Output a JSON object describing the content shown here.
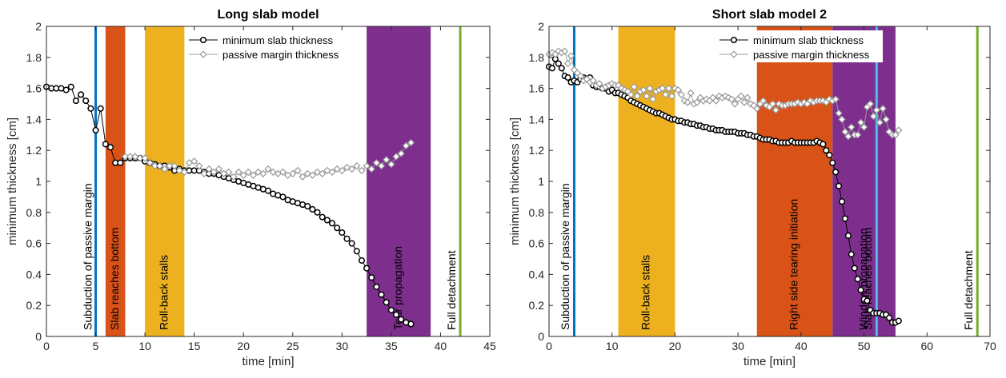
{
  "chart_data": [
    {
      "type": "scatter",
      "title": "Long slab model",
      "xlabel": "time [min]",
      "ylabel": "minimum thickness [cm]",
      "xlim": [
        0,
        45
      ],
      "ylim": [
        0,
        2
      ],
      "xticks": [
        "0",
        "5",
        "10",
        "15",
        "20",
        "25",
        "30",
        "35",
        "40",
        "45"
      ],
      "yticks": [
        "0",
        "0.2",
        "0.4",
        "0.6",
        "0.8",
        "1",
        "1.2",
        "1.4",
        "1.6",
        "1.8",
        "2"
      ],
      "grid": false,
      "legend_position": "top-center",
      "bands": [
        {
          "x0": 6,
          "x1": 8,
          "color": "#D95319",
          "label": "Slab reaches bottom"
        },
        {
          "x0": 10,
          "x1": 14,
          "color": "#EDB120",
          "label": "Roll-back stalls"
        },
        {
          "x0": 32.5,
          "x1": 39,
          "color": "#7E2F8E",
          "label": "Tear propagation"
        }
      ],
      "vlines": [
        {
          "x": 5,
          "color": "#0072BD",
          "label": "Subduction of passive margin"
        },
        {
          "x": 42,
          "color": "#77AC30",
          "label": "Full detachment"
        }
      ],
      "series": [
        {
          "name": "minimum slab thickness",
          "marker": "circle",
          "color": "#000000",
          "x": [
            0,
            0.5,
            1,
            1.5,
            2,
            2.5,
            3,
            3.5,
            4,
            4.5,
            5,
            5.5,
            6,
            6.5,
            7,
            7.5,
            8,
            8.5,
            9,
            9.5,
            10,
            10.5,
            11,
            11.5,
            12,
            12.5,
            13,
            13.5,
            14,
            14.5,
            15,
            15.5,
            16,
            16.5,
            17,
            17.5,
            18,
            18.5,
            19,
            19.5,
            20,
            20.5,
            21,
            21.5,
            22,
            22.5,
            23,
            23.5,
            24,
            24.5,
            25,
            25.5,
            26,
            26.5,
            27,
            27.5,
            28,
            28.5,
            29,
            29.5,
            30,
            30.5,
            31,
            31.5,
            32,
            32.5,
            33,
            33.5,
            34,
            34.5,
            35,
            35.5,
            36,
            36.5,
            37
          ],
          "y": [
            1.61,
            1.6,
            1.6,
            1.6,
            1.59,
            1.61,
            1.52,
            1.56,
            1.52,
            1.47,
            1.33,
            1.47,
            1.24,
            1.22,
            1.12,
            1.12,
            1.15,
            1.15,
            1.15,
            1.15,
            1.13,
            1.12,
            1.11,
            1.1,
            1.1,
            1.09,
            1.07,
            1.08,
            1.07,
            1.07,
            1.07,
            1.07,
            1.06,
            1.05,
            1.05,
            1.04,
            1.03,
            1.02,
            1.01,
            1.0,
            0.99,
            0.98,
            0.97,
            0.96,
            0.95,
            0.94,
            0.92,
            0.91,
            0.9,
            0.88,
            0.87,
            0.86,
            0.85,
            0.84,
            0.82,
            0.8,
            0.77,
            0.75,
            0.73,
            0.7,
            0.67,
            0.63,
            0.6,
            0.55,
            0.49,
            0.44,
            0.38,
            0.32,
            0.27,
            0.22,
            0.17,
            0.14,
            0.11,
            0.09,
            0.08
          ]
        },
        {
          "name": "passive margin thickness",
          "marker": "diamond",
          "color": "#999999",
          "x": [
            8,
            8.5,
            9,
            9.5,
            10,
            10.5,
            11,
            11.5,
            12,
            12.5,
            13,
            13.5,
            14,
            14.5,
            15,
            15.5,
            16,
            16.5,
            17,
            17.5,
            18,
            18.5,
            19,
            19.5,
            20,
            20.5,
            21,
            21.5,
            22,
            22.5,
            23,
            23.5,
            24,
            24.5,
            25,
            25.5,
            26,
            26.5,
            27,
            27.5,
            28,
            28.5,
            29,
            29.5,
            30,
            30.5,
            31,
            31.5,
            32,
            32.5,
            33,
            33.5,
            34,
            34.5,
            35,
            35.5,
            36,
            36.5,
            37
          ],
          "y": [
            1.16,
            1.16,
            1.16,
            1.15,
            1.15,
            1.12,
            1.1,
            1.1,
            1.08,
            1.1,
            1.1,
            1.07,
            1.06,
            1.12,
            1.13,
            1.1,
            1.05,
            1.08,
            1.06,
            1.08,
            1.05,
            1.06,
            1.03,
            1.06,
            1.04,
            1.06,
            1.04,
            1.06,
            1.05,
            1.08,
            1.06,
            1.05,
            1.06,
            1.04,
            1.05,
            1.07,
            1.03,
            1.05,
            1.04,
            1.06,
            1.05,
            1.07,
            1.06,
            1.08,
            1.07,
            1.09,
            1.08,
            1.1,
            1.07,
            1.1,
            1.08,
            1.12,
            1.1,
            1.14,
            1.11,
            1.16,
            1.18,
            1.23,
            1.25
          ]
        }
      ]
    },
    {
      "type": "scatter",
      "title": "Short slab model 2",
      "xlabel": "time [min]",
      "ylabel": "minimum thickness [cm]",
      "xlim": [
        0,
        70
      ],
      "ylim": [
        0,
        2
      ],
      "xticks": [
        "0",
        "10",
        "20",
        "30",
        "40",
        "50",
        "60",
        "70"
      ],
      "yticks": [
        "0",
        "0.2",
        "0.4",
        "0.6",
        "0.8",
        "1",
        "1.2",
        "1.4",
        "1.6",
        "1.8",
        "2"
      ],
      "grid": false,
      "legend_position": "top-right",
      "bands": [
        {
          "x0": 11,
          "x1": 20,
          "color": "#EDB120",
          "label": "Roll-back stalls"
        },
        {
          "x0": 33,
          "x1": 45,
          "color": "#D95319",
          "label": "Right side tearing initiation"
        },
        {
          "x0": 45,
          "x1": 55,
          "color": "#7E2F8E",
          "label": "Window propagation"
        }
      ],
      "vlines": [
        {
          "x": 4,
          "color": "#0072BD",
          "label": "Subduction of passive margin"
        },
        {
          "x": 52,
          "color": "#4DBEEE",
          "label": "Slab reaches bottom"
        },
        {
          "x": 68,
          "color": "#77AC30",
          "label": "Full detachment"
        }
      ],
      "series": [
        {
          "name": "minimum slab thickness",
          "marker": "circle",
          "color": "#000000",
          "x": [
            0,
            0.5,
            1,
            1.5,
            2,
            2.5,
            3,
            3.5,
            4,
            4.5,
            5,
            5.5,
            6,
            6.5,
            7,
            7.5,
            8,
            8.5,
            9,
            9.5,
            10,
            10.5,
            11,
            11.5,
            12,
            12.5,
            13,
            13.5,
            14,
            14.5,
            15,
            15.5,
            16,
            16.5,
            17,
            17.5,
            18,
            18.5,
            19,
            19.5,
            20,
            20.5,
            21,
            21.5,
            22,
            22.5,
            23,
            23.5,
            24,
            24.5,
            25,
            25.5,
            26,
            26.5,
            27,
            27.5,
            28,
            28.5,
            29,
            29.5,
            30,
            30.5,
            31,
            31.5,
            32,
            32.5,
            33,
            33.5,
            34,
            34.5,
            35,
            35.5,
            36,
            36.5,
            37,
            37.5,
            38,
            38.5,
            39,
            39.5,
            40,
            40.5,
            41,
            41.5,
            42,
            42.5,
            43,
            43.5,
            44,
            44.5,
            45,
            45.5,
            46,
            46.5,
            47,
            47.5,
            48,
            48.5,
            49,
            49.5,
            50,
            50.5,
            51,
            51.5,
            52,
            52.5,
            53,
            53.5,
            54,
            54.5,
            55,
            55.5
          ],
          "y": [
            1.74,
            1.73,
            1.79,
            1.76,
            1.73,
            1.68,
            1.67,
            1.64,
            1.65,
            1.64,
            1.66,
            1.67,
            1.66,
            1.67,
            1.62,
            1.61,
            1.61,
            1.6,
            1.6,
            1.58,
            1.59,
            1.57,
            1.57,
            1.56,
            1.55,
            1.54,
            1.52,
            1.51,
            1.5,
            1.49,
            1.48,
            1.47,
            1.46,
            1.45,
            1.44,
            1.44,
            1.43,
            1.42,
            1.41,
            1.4,
            1.4,
            1.39,
            1.39,
            1.38,
            1.38,
            1.37,
            1.37,
            1.36,
            1.36,
            1.35,
            1.35,
            1.34,
            1.34,
            1.33,
            1.33,
            1.33,
            1.32,
            1.32,
            1.32,
            1.32,
            1.31,
            1.31,
            1.31,
            1.3,
            1.3,
            1.29,
            1.29,
            1.28,
            1.27,
            1.27,
            1.27,
            1.26,
            1.26,
            1.25,
            1.25,
            1.25,
            1.25,
            1.26,
            1.25,
            1.25,
            1.25,
            1.25,
            1.25,
            1.25,
            1.25,
            1.26,
            1.25,
            1.24,
            1.2,
            1.17,
            1.12,
            1.06,
            0.97,
            0.87,
            0.76,
            0.65,
            0.53,
            0.44,
            0.37,
            0.3,
            0.24,
            0.23,
            0.17,
            0.15,
            0.15,
            0.15,
            0.14,
            0.14,
            0.12,
            0.09,
            0.09,
            0.1
          ]
        },
        {
          "name": "passive margin thickness",
          "marker": "diamond",
          "color": "#999999",
          "x": [
            0,
            0.5,
            1,
            1.5,
            2,
            2.5,
            3,
            3.5,
            4,
            4.5,
            5,
            5.5,
            6,
            6.5,
            7,
            7.5,
            8,
            8.5,
            9,
            9.5,
            10,
            10.5,
            11,
            11.5,
            12,
            12.5,
            13,
            13.5,
            14,
            14.5,
            15,
            15.5,
            16,
            16.5,
            17,
            17.5,
            18,
            18.5,
            19,
            19.5,
            20,
            20.5,
            21,
            21.5,
            22,
            22.5,
            23,
            23.5,
            24,
            24.5,
            25,
            25.5,
            26,
            26.5,
            27,
            27.5,
            28,
            28.5,
            29,
            29.5,
            30,
            30.5,
            31,
            31.5,
            32,
            32.5,
            33,
            33.5,
            34,
            34.5,
            35,
            35.5,
            36,
            36.5,
            37,
            37.5,
            38,
            38.5,
            39,
            39.5,
            40,
            40.5,
            41,
            41.5,
            42,
            42.5,
            43,
            43.5,
            44,
            44.5,
            45,
            45.5,
            46,
            46.5,
            47,
            47.5,
            48,
            48.5,
            49,
            49.5,
            50,
            50.5,
            51,
            51.5,
            52,
            52.5,
            53,
            53.5,
            54,
            54.5,
            55,
            55.5
          ],
          "y": [
            1.82,
            1.83,
            1.82,
            1.84,
            1.83,
            1.84,
            1.76,
            1.81,
            1.72,
            1.7,
            1.68,
            1.65,
            1.66,
            1.64,
            1.65,
            1.62,
            1.63,
            1.6,
            1.61,
            1.62,
            1.63,
            1.62,
            1.62,
            1.6,
            1.59,
            1.58,
            1.56,
            1.61,
            1.55,
            1.58,
            1.59,
            1.55,
            1.6,
            1.53,
            1.58,
            1.59,
            1.6,
            1.56,
            1.6,
            1.55,
            1.6,
            1.59,
            1.56,
            1.52,
            1.51,
            1.57,
            1.5,
            1.51,
            1.54,
            1.52,
            1.53,
            1.52,
            1.54,
            1.52,
            1.55,
            1.54,
            1.55,
            1.54,
            1.53,
            1.5,
            1.53,
            1.55,
            1.51,
            1.54,
            1.5,
            1.49,
            1.47,
            1.5,
            1.52,
            1.49,
            1.48,
            1.5,
            1.46,
            1.5,
            1.49,
            1.49,
            1.5,
            1.5,
            1.5,
            1.51,
            1.5,
            1.51,
            1.5,
            1.52,
            1.51,
            1.52,
            1.52,
            1.52,
            1.51,
            1.53,
            1.52,
            1.53,
            1.44,
            1.4,
            1.32,
            1.29,
            1.35,
            1.3,
            1.3,
            1.38,
            1.35,
            1.48,
            1.5,
            1.42,
            1.46,
            1.38,
            1.47,
            1.4,
            1.32,
            1.3,
            1.3,
            1.33
          ]
        }
      ]
    }
  ]
}
